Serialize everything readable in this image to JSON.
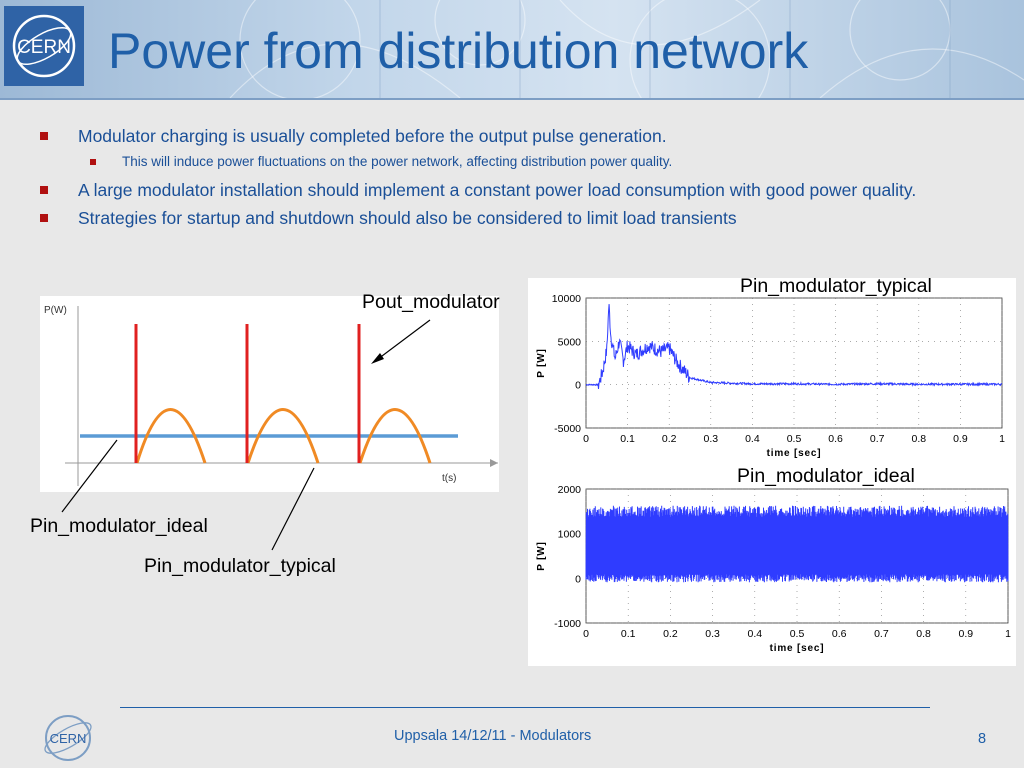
{
  "slide": {
    "title": "Power from distribution network",
    "logo_text": "CERN",
    "footer": "Uppsala 14/12/11 - Modulators",
    "page_number": "8",
    "accent_color": "#1f5fa8",
    "bullet_color": "#b01010"
  },
  "bullets": [
    {
      "level": 1,
      "text": "Modulator charging is usually completed before the output pulse generation."
    },
    {
      "level": 2,
      "text": "This will induce power fluctuations  on the power network, affecting distribution power quality."
    },
    {
      "level": 1,
      "text": "A large modulator installation should implement a constant power load consumption with good power quality."
    },
    {
      "level": 1,
      "text": "Strategies for startup and shutdown should also be considered to limit load transients"
    }
  ],
  "sketch": {
    "y_axis_label": "P(W)",
    "x_axis_label": "t(s)",
    "labels": {
      "pout": "Pout_modulator",
      "pin_ideal": "Pin_modulator_ideal",
      "pin_typical": "Pin_modulator_typical"
    },
    "colors": {
      "pulse": "#e02020",
      "typical": "#f08a24",
      "ideal": "#5b9bd5"
    }
  },
  "chart_data": [
    {
      "type": "line",
      "title": "Pin_modulator_typical",
      "xlabel": "time [sec]",
      "ylabel": "P [W]",
      "xlim": [
        0,
        1
      ],
      "ylim": [
        -5000,
        10000
      ],
      "x_ticks": [
        "0",
        "0.1",
        "0.2",
        "0.3",
        "0.4",
        "0.5",
        "0.6",
        "0.7",
        "0.8",
        "0.9",
        "1"
      ],
      "y_ticks": [
        "10000",
        "5000",
        "0",
        "-5000"
      ],
      "grid": true,
      "line_color": "#2f3cff",
      "series": [
        {
          "x": [
            0,
            0.03,
            0.04,
            0.05,
            0.055,
            0.06,
            0.07,
            0.08,
            0.09,
            0.1,
            0.12,
            0.15,
            0.18,
            0.2,
            0.22,
            0.25,
            0.3,
            0.4,
            0.5,
            0.6,
            0.7,
            0.8,
            0.9,
            1.0
          ],
          "values": [
            0,
            0,
            1500,
            4000,
            9300,
            5500,
            3000,
            5000,
            2800,
            4500,
            3500,
            4500,
            3800,
            4200,
            2500,
            800,
            250,
            100,
            100,
            50,
            100,
            50,
            50,
            50
          ]
        }
      ]
    },
    {
      "type": "line",
      "title": "Pin_modulator_ideal",
      "xlabel": "time [sec]",
      "ylabel": "P [W]",
      "xlim": [
        0,
        1
      ],
      "ylim": [
        -1000,
        2000
      ],
      "x_ticks": [
        "0",
        "0.1",
        "0.2",
        "0.3",
        "0.4",
        "0.5",
        "0.6",
        "0.7",
        "0.8",
        "0.9",
        "1"
      ],
      "y_ticks": [
        "2000",
        "1000",
        "0",
        "-1000"
      ],
      "grid": true,
      "line_color": "#2f3cff",
      "series": [
        {
          "x": [
            0,
            1
          ],
          "band_min": [
            0,
            0
          ],
          "band_max": [
            1500,
            1500
          ]
        }
      ]
    }
  ]
}
